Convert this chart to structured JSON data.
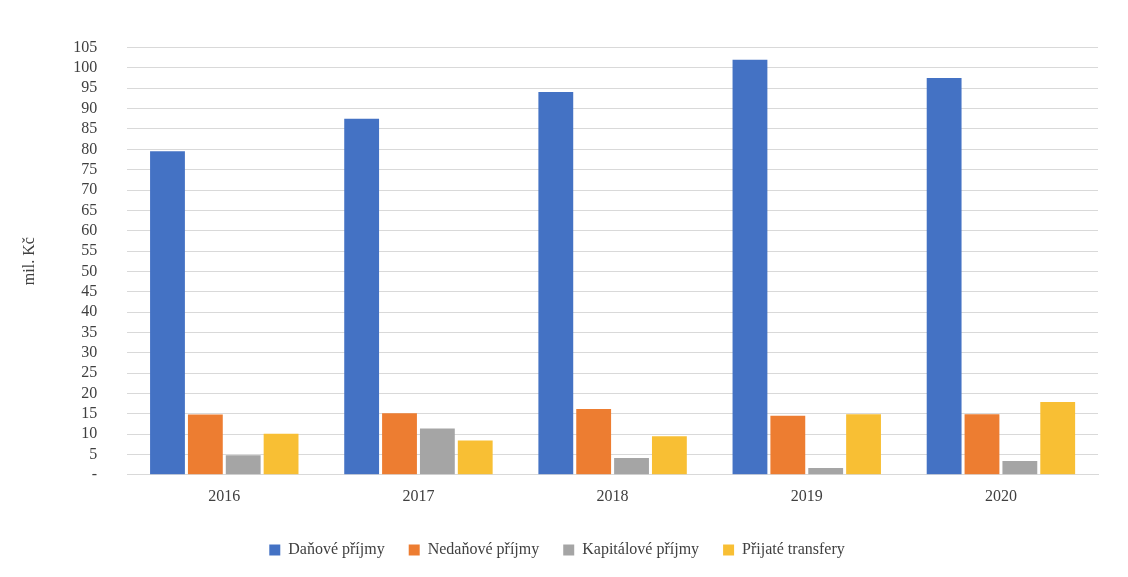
{
  "chart_data": {
    "type": "bar",
    "ylabel": "mil. Kč",
    "categories": [
      "2016",
      "2017",
      "2018",
      "2019",
      "2020"
    ],
    "series": [
      {
        "name": "Daňové příjmy",
        "color": "#4472c4",
        "values": [
          79.5,
          87.5,
          94.1,
          102.0,
          97.5
        ]
      },
      {
        "name": "Nedaňové příjmy",
        "color": "#ed7d31",
        "values": [
          14.8,
          15.1,
          16.2,
          14.5,
          14.9
        ]
      },
      {
        "name": "Kapitálové příjmy",
        "color": "#a5a5a5",
        "values": [
          4.8,
          11.4,
          4.1,
          1.7,
          3.4
        ]
      },
      {
        "name": "Přijaté transfery",
        "color": "#f8bf34",
        "values": [
          10.1,
          8.4,
          9.5,
          14.9,
          17.9
        ]
      }
    ],
    "ylim": [
      0,
      105
    ],
    "yticks": [
      {
        "value": 0,
        "label": "-"
      },
      5,
      10,
      15,
      20,
      25,
      30,
      35,
      40,
      45,
      50,
      55,
      60,
      65,
      70,
      75,
      80,
      85,
      90,
      95,
      100,
      105
    ],
    "grid": "y",
    "legend": "bottom"
  }
}
